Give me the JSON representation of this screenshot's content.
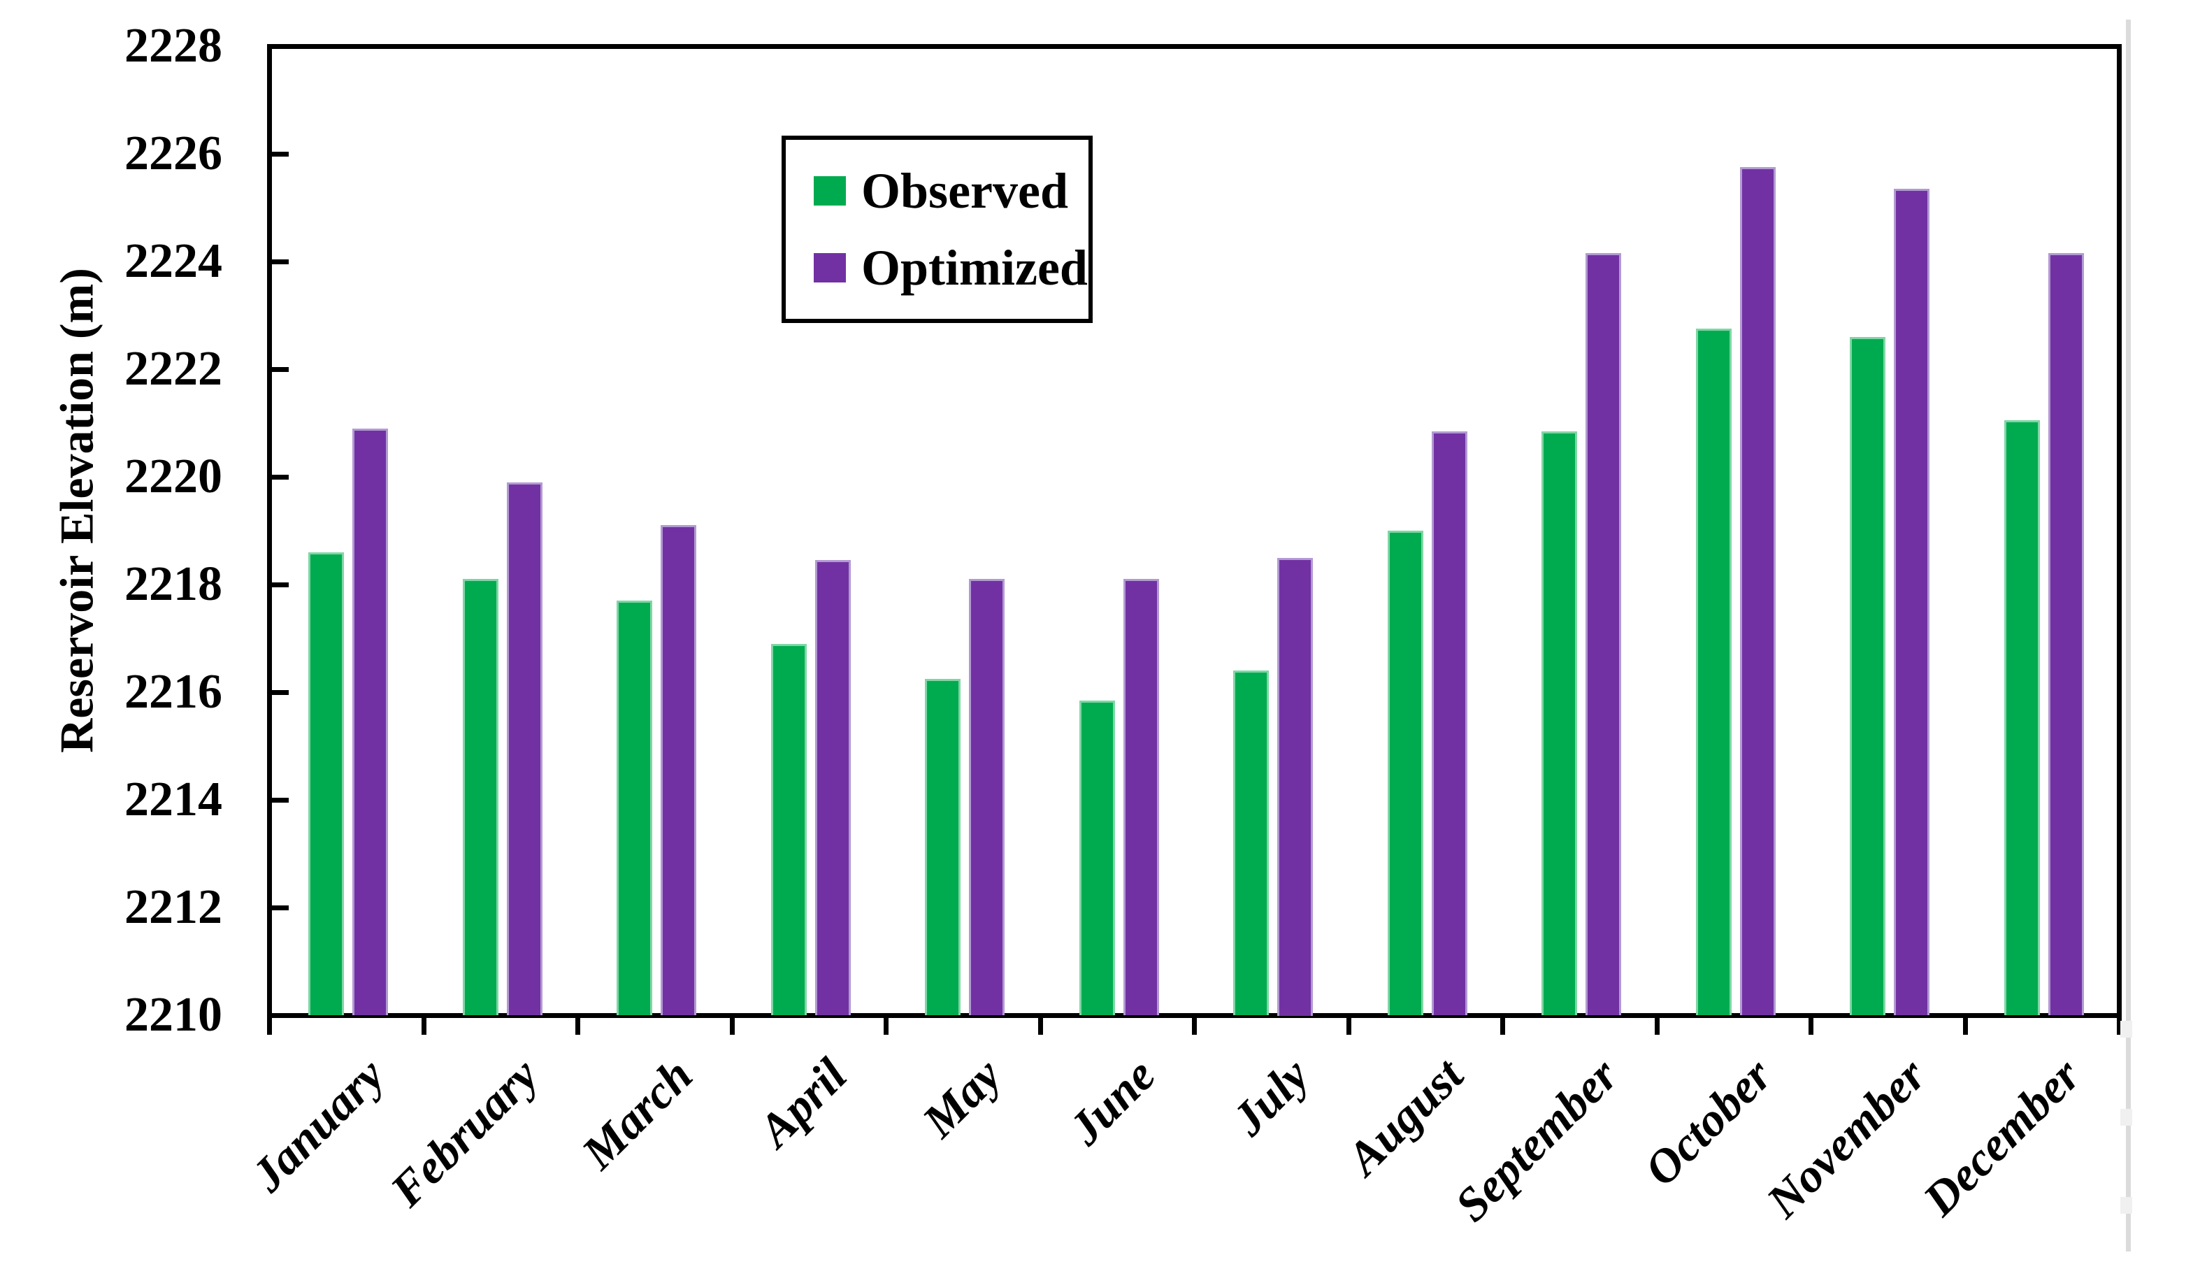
{
  "chart_data": {
    "type": "bar",
    "title": "",
    "ylabel": "Reservoir Elevation (m)",
    "xlabel": "",
    "ylim": [
      2210,
      2228
    ],
    "yticks": [
      2210,
      2212,
      2214,
      2216,
      2218,
      2220,
      2222,
      2224,
      2226,
      2228
    ],
    "categories": [
      "January",
      "February",
      "March",
      "April",
      "May",
      "June",
      "July",
      "August",
      "September",
      "October",
      "November",
      "December"
    ],
    "series": [
      {
        "name": "Observed",
        "color": "#00AB50",
        "edge_color": "#7FD6A4",
        "values": [
          2218.6,
          2218.1,
          2217.7,
          2216.9,
          2216.25,
          2215.85,
          2216.4,
          2219.0,
          2220.85,
          2222.75,
          2222.6,
          2221.05
        ]
      },
      {
        "name": "Optimized",
        "color": "#7131A3",
        "edge_color": "#B29AD2",
        "values": [
          2220.9,
          2219.9,
          2219.1,
          2218.45,
          2218.1,
          2218.1,
          2218.5,
          2220.85,
          2224.15,
          2225.75,
          2225.35,
          2224.15
        ]
      }
    ],
    "legend_position": "upper-center-left-inside",
    "grid": false,
    "axis_color": "#000000",
    "background": "#ffffff"
  },
  "decorations": {
    "right_edge_line_color": "#dbdbdb",
    "right_edge_notch_color": "#f0f0f0"
  }
}
